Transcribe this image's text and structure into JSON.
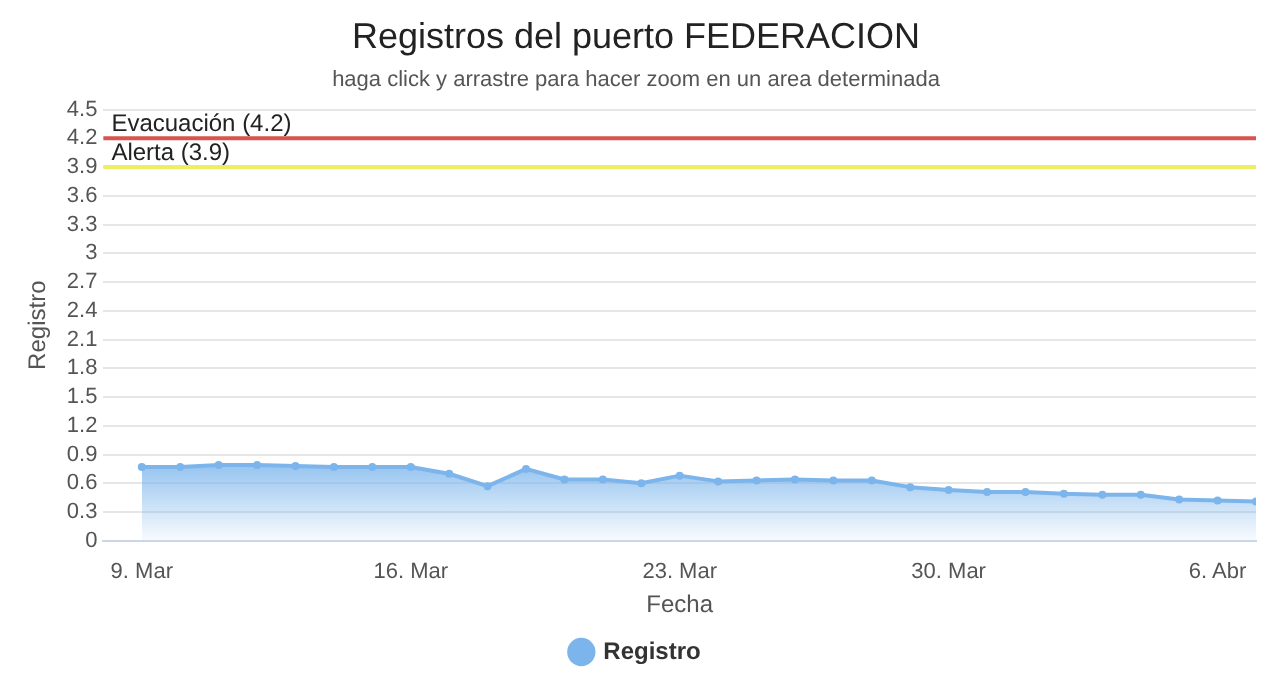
{
  "chart_data": {
    "type": "area",
    "title": "Registros del puerto FEDERACION",
    "subtitle": "haga click y arrastre para hacer zoom en un area determinada",
    "xlabel": "Fecha",
    "ylabel": "Registro",
    "x": [
      "--03-09",
      "--03-10",
      "--03-11",
      "--03-12",
      "--03-13",
      "--03-14",
      "--03-15",
      "--03-16",
      "--03-17",
      "--03-18",
      "--03-19",
      "--03-20",
      "--03-21",
      "--03-22",
      "--03-23",
      "--03-24",
      "--03-25",
      "--03-26",
      "--03-27",
      "--03-28",
      "--03-29",
      "--03-30",
      "--03-31",
      "--04-01",
      "--04-02",
      "--04-03",
      "--04-04",
      "--04-05",
      "--04-06",
      "--04-07"
    ],
    "series": [
      {
        "name": "Registro",
        "color": "#7cb5ec",
        "values": [
          0.77,
          0.77,
          0.79,
          0.79,
          0.78,
          0.77,
          0.77,
          0.77,
          0.7,
          0.57,
          0.75,
          0.64,
          0.64,
          0.6,
          0.68,
          0.62,
          0.63,
          0.64,
          0.63,
          0.63,
          0.56,
          0.53,
          0.51,
          0.51,
          0.49,
          0.48,
          0.48,
          0.43,
          0.42,
          0.41
        ]
      }
    ],
    "xlim": [
      "--03-08",
      "--04-07"
    ],
    "xticks": [
      {
        "value": "--03-09",
        "label": "9. Mar"
      },
      {
        "value": "--03-16",
        "label": "16. Mar"
      },
      {
        "value": "--03-23",
        "label": "23. Mar"
      },
      {
        "value": "--03-30",
        "label": "30. Mar"
      },
      {
        "value": "--04-06",
        "label": "6. Abr"
      }
    ],
    "ylim": [
      0,
      4.5
    ],
    "yticks": [
      0,
      0.3,
      0.6,
      0.9,
      1.2,
      1.5,
      1.8,
      2.1,
      2.4,
      2.7,
      3,
      3.3,
      3.6,
      3.9,
      4.2,
      4.5
    ],
    "ref_lines": [
      {
        "axis": "y",
        "value": 4.2,
        "label": "Evacuación (4.2)",
        "color": "#d9534f"
      },
      {
        "axis": "y",
        "value": 3.9,
        "label": "Alerta (3.9)",
        "color": "#eeee66"
      }
    ],
    "grid": "y",
    "legend": "bottom",
    "marker": "circle",
    "line_style": "solid"
  }
}
